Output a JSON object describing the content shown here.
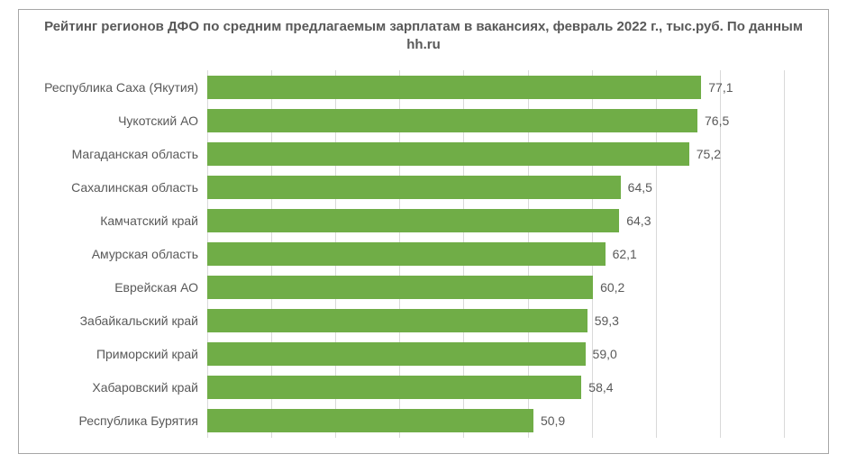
{
  "chart": {
    "type": "bar-horizontal",
    "title": "Рейтинг регионов ДФО по средним предлагаемым зарплатам в вакансиях,\nфевраль 2022 г., тыс.руб. По данным hh.ru",
    "title_fontsize": 15,
    "title_color": "#595959",
    "background_color": "#ffffff",
    "border_color": "#a6a6a6",
    "grid_color": "#d9d9d9",
    "bar_color": "#70ad47",
    "label_color": "#595959",
    "label_fontsize": 14,
    "value_color": "#595959",
    "value_fontsize": 14,
    "xlim": [
      0,
      90
    ],
    "xtick_step": 10,
    "categories": [
      "Республика Саха (Якутия)",
      "Чукотский АО",
      "Магаданская область",
      "Сахалинская область",
      "Камчатский край",
      "Амурская область",
      "Еврейская АО",
      "Забайкальский край",
      "Приморский край",
      "Хабаровский край",
      "Республика Бурятия"
    ],
    "values": [
      77.1,
      76.5,
      75.2,
      64.5,
      64.3,
      62.1,
      60.2,
      59.3,
      59.0,
      58.4,
      50.9
    ],
    "value_labels": [
      "77,1",
      "76,5",
      "75,2",
      "64,5",
      "64,3",
      "62,1",
      "60,2",
      "59,3",
      "59,0",
      "58,4",
      "50,9"
    ]
  }
}
